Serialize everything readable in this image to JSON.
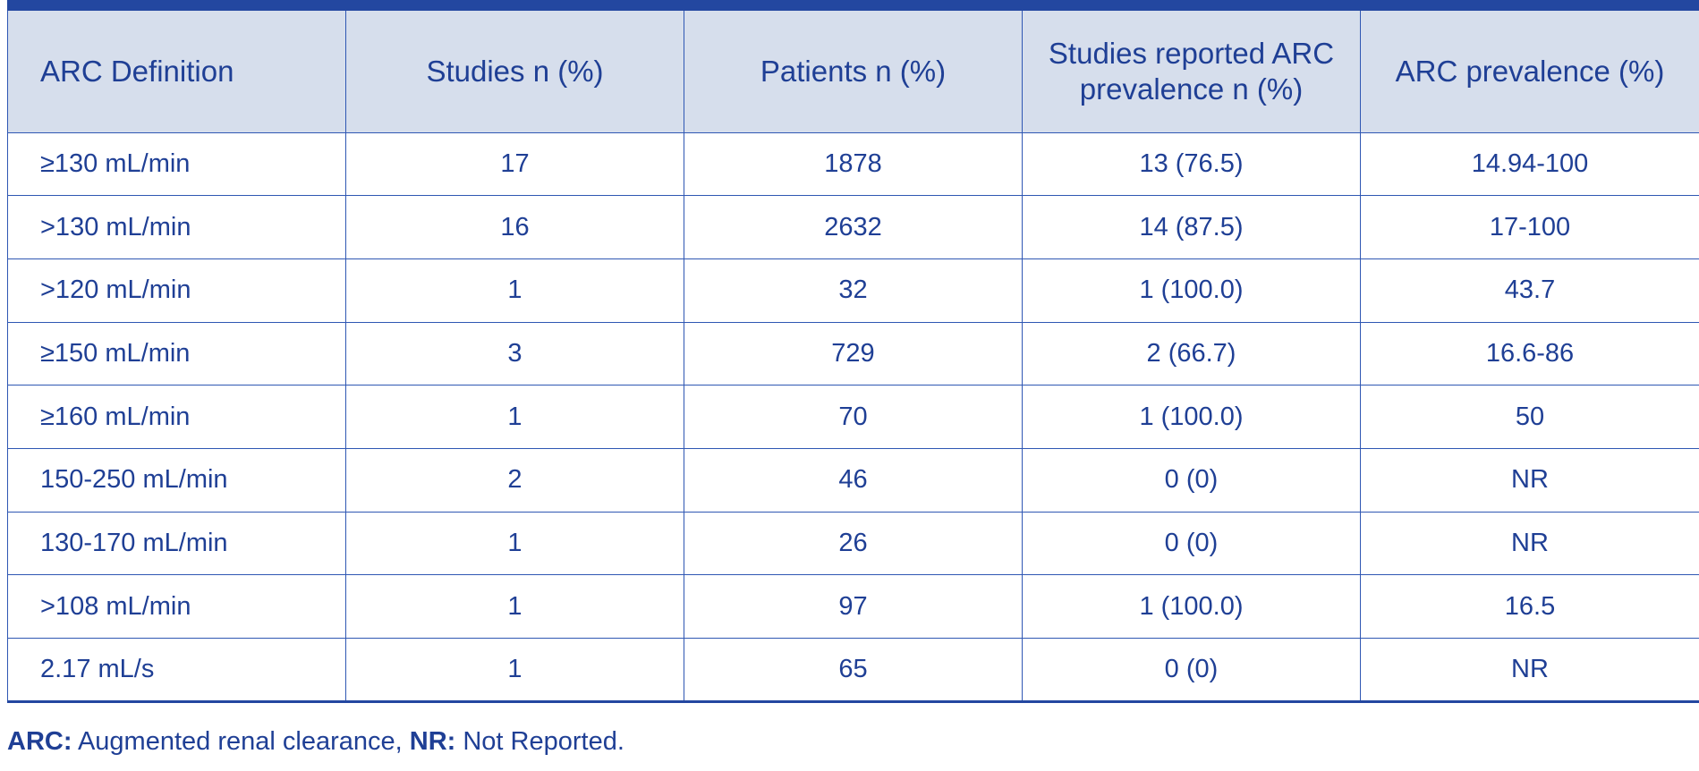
{
  "table": {
    "headers": [
      "ARC Definition",
      "Studies n (%)",
      "Patients n (%)",
      "Studies reported ARC prevalence n (%)",
      "ARC prevalence (%)"
    ],
    "rows": [
      [
        "≥130 mL/min",
        "17",
        "1878",
        "13 (76.5)",
        "14.94-100"
      ],
      [
        ">130 mL/min",
        "16",
        "2632",
        "14 (87.5)",
        "17-100"
      ],
      [
        ">120 mL/min",
        "1",
        "32",
        "1 (100.0)",
        "43.7"
      ],
      [
        "≥150 mL/min",
        "3",
        "729",
        "2 (66.7)",
        "16.6-86"
      ],
      [
        "≥160 mL/min",
        "1",
        "70",
        "1 (100.0)",
        "50"
      ],
      [
        "150-250 mL/min",
        "2",
        "46",
        "0 (0)",
        "NR"
      ],
      [
        "130-170 mL/min",
        "1",
        "26",
        "0 (0)",
        "NR"
      ],
      [
        ">108 mL/min",
        "1",
        "97",
        "1 (100.0)",
        "16.5"
      ],
      [
        "2.17 mL/s",
        "1",
        "65",
        "0 (0)",
        "NR"
      ]
    ]
  },
  "footnote": {
    "abbr1": "ARC:",
    "def1": " Augmented renal clearance, ",
    "abbr2": "NR:",
    "def2": " Not Reported."
  },
  "colors": {
    "accent": "#2347a0",
    "header_bg": "#d6deec",
    "text": "#1f3f95"
  }
}
